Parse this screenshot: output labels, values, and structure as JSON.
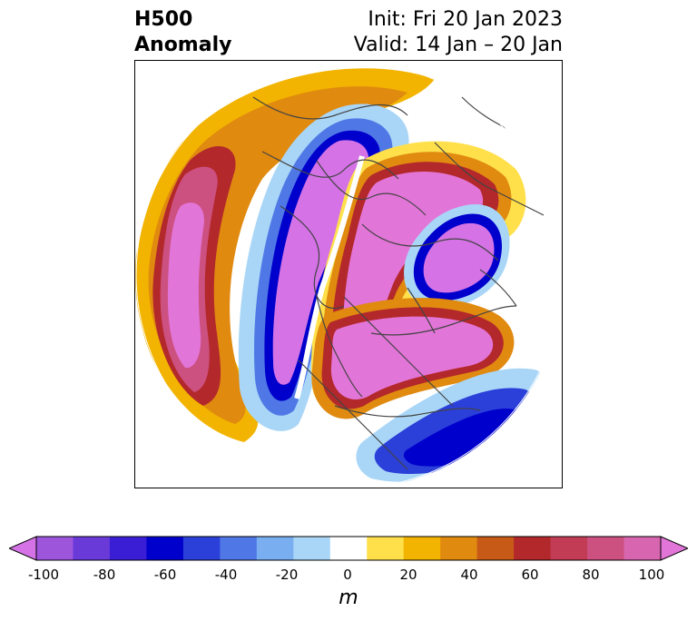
{
  "title": {
    "line1_left": "H500",
    "line2_left": "Anomaly",
    "line1_right": "Init: Fri 20 Jan 2023",
    "line2_right": "Valid: 14 Jan – 20 Jan"
  },
  "colorbar": {
    "unit": "m",
    "tick_labels": [
      "-100",
      "-80",
      "-60",
      "-40",
      "-20",
      "0",
      "20",
      "40",
      "60",
      "80",
      "100"
    ],
    "colors": [
      "#d472e6",
      "#9d55dc",
      "#6a3ad9",
      "#3a1ed6",
      "#0000cc",
      "#2b3fd9",
      "#4f78e6",
      "#79aef0",
      "#a9d6f7",
      "#ffffff",
      "#ffe04a",
      "#f2b400",
      "#e08a10",
      "#c85a18",
      "#b3282a",
      "#c23c55",
      "#cc5080",
      "#d865b0",
      "#e275d8"
    ],
    "min": -100,
    "max": 100,
    "step": 10
  },
  "map": {
    "projection": "polar stereographic (north pole)",
    "colors_used": {
      "strong_negative": "#d472e6",
      "negative_core": "#0000cc",
      "weak_negative": "#a9d6f7",
      "weak_positive": "#ffe04a",
      "moderate_positive": "#e08a10",
      "strong_positive": "#e275d8",
      "border_lines": "#444444"
    }
  }
}
